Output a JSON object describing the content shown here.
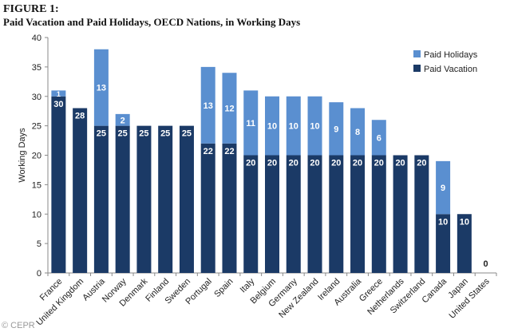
{
  "figure": {
    "label": "FIGURE 1:",
    "title": "Paid Vacation and Paid Holidays, OECD Nations, in Working Days"
  },
  "watermark": "© CEPR",
  "chart_data": {
    "type": "bar",
    "stacked": true,
    "title": "Paid Vacation and Paid Holidays, OECD Nations, in Working Days",
    "xlabel": "",
    "ylabel": "Working Days",
    "ylim": [
      0,
      40
    ],
    "yticks": [
      0,
      5,
      10,
      15,
      20,
      25,
      30,
      35,
      40
    ],
    "grid": false,
    "legend_position": "top-right",
    "categories": [
      "France",
      "United Kingdom",
      "Austria",
      "Norway",
      "Denmark",
      "Finland",
      "Sweden",
      "Portugal",
      "Spain",
      "Italy",
      "Belgium",
      "Germany",
      "New Zealand",
      "Ireland",
      "Australia",
      "Greece",
      "Netherlands",
      "Switzerland",
      "Canada",
      "Japan",
      "United States"
    ],
    "series": [
      {
        "name": "Paid Vacation",
        "color": "#1b3a66",
        "values": [
          30,
          28,
          25,
          25,
          25,
          25,
          25,
          22,
          22,
          20,
          20,
          20,
          20,
          20,
          20,
          20,
          20,
          20,
          10,
          10,
          0
        ]
      },
      {
        "name": "Paid Holidays",
        "color": "#5a8fd0",
        "values": [
          1,
          0,
          13,
          2,
          0,
          0,
          0,
          13,
          12,
          11,
          10,
          10,
          10,
          9,
          8,
          6,
          0,
          0,
          9,
          0,
          0
        ]
      }
    ],
    "legend_order": [
      "Paid Holidays",
      "Paid Vacation"
    ]
  }
}
